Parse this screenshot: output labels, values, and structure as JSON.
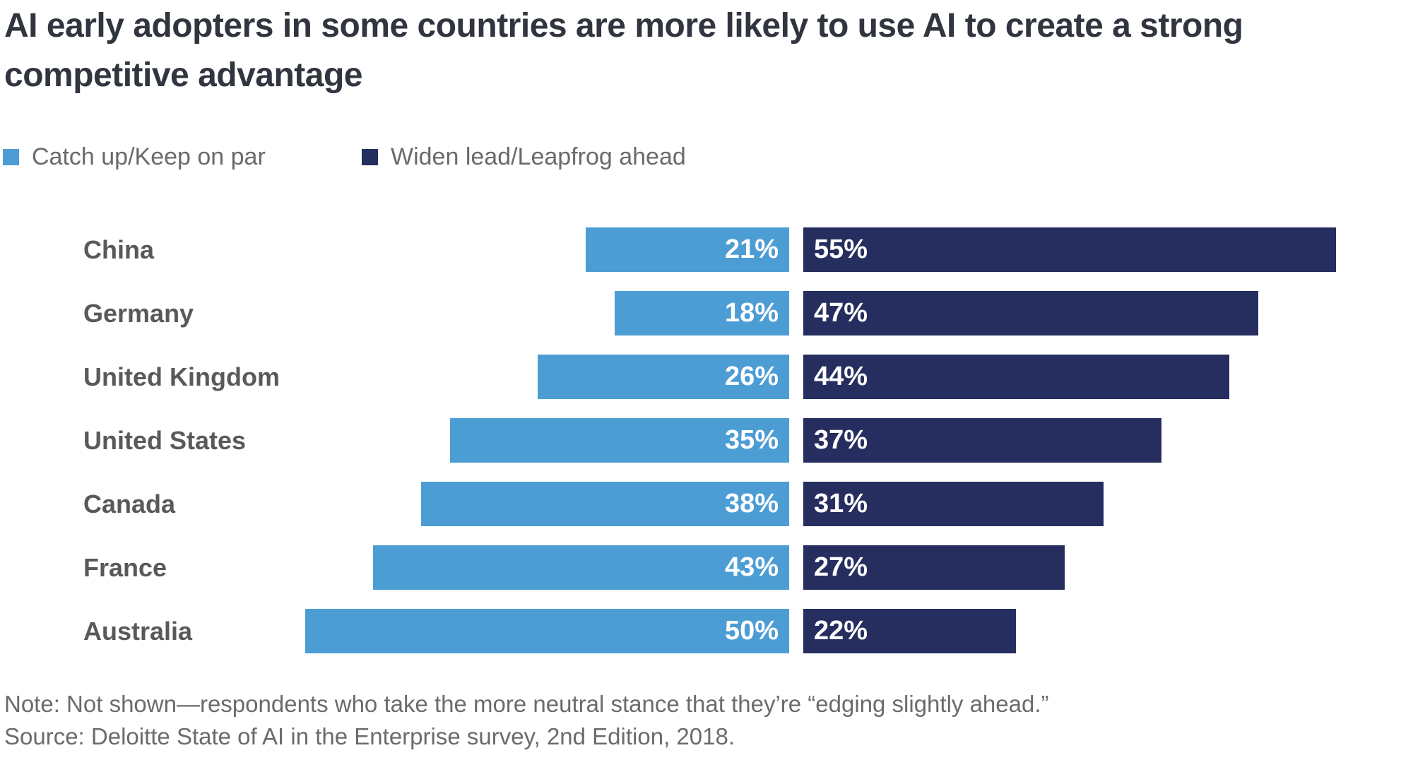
{
  "title": {
    "line1": "AI early adopters in some countries are more likely to use AI to create a strong",
    "line2": "competitive advantage"
  },
  "footer": {
    "note": "Note: Not shown—respondents who take the more neutral stance that they’re “edging slightly ahead.”",
    "source": "Source: Deloitte State of AI in the Enterprise survey, 2nd Edition, 2018."
  },
  "colors": {
    "catch_up": "#4D9DD5",
    "widen_lead": "#252E5F",
    "title_text": "#31353F",
    "country_label_text": "#58595B",
    "legend_text": "#696A6D",
    "bar_value_text": "#FFFFFF"
  },
  "chart_data": {
    "type": "bar",
    "orientation": "horizontal-diverging",
    "title": "AI early adopters in some countries are more likely to use AI to create a strong competitive advantage",
    "categories": [
      "China",
      "Germany",
      "United Kingdom",
      "United States",
      "Canada",
      "France",
      "Australia"
    ],
    "series": [
      {
        "name": "Catch up/Keep on par",
        "color": "#4D9DD5",
        "values": [
          21,
          18,
          26,
          35,
          38,
          43,
          50
        ],
        "labels": [
          "21%",
          "18%",
          "26%",
          "35%",
          "38%",
          "43%",
          "50%"
        ],
        "side": "left"
      },
      {
        "name": "Widen lead/Leapfrog ahead",
        "color": "#252E5F",
        "values": [
          55,
          47,
          44,
          37,
          31,
          27,
          22
        ],
        "labels": [
          "55%",
          "47%",
          "44%",
          "37%",
          "31%",
          "27%",
          "22%"
        ],
        "side": "right"
      }
    ],
    "value_suffix": "%",
    "axis": "none",
    "grid": false,
    "legend_position": "top-left",
    "value_labels": "inside-bar"
  }
}
